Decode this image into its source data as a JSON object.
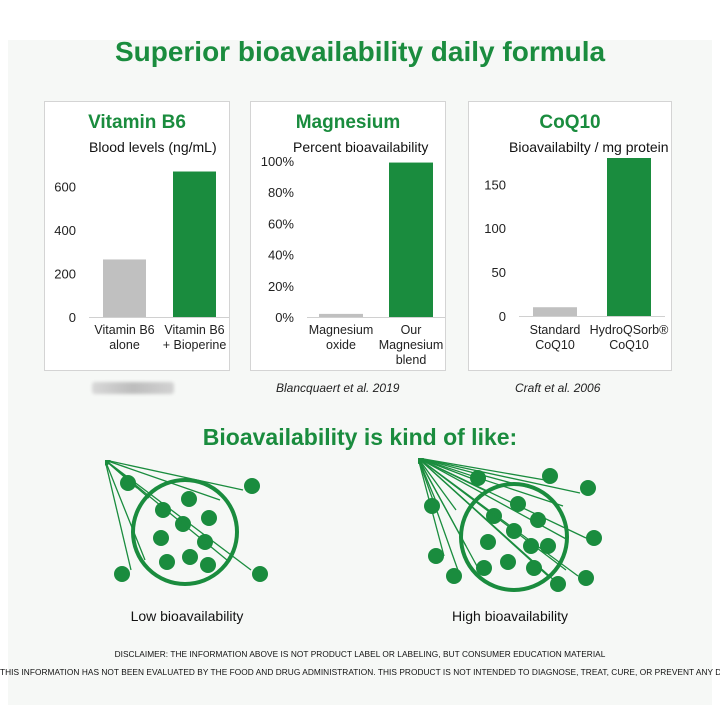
{
  "title": "Superior bioavailability daily formula",
  "subtitle": "Bioavailability is kind of like:",
  "colors": {
    "green": "#1a8c3e",
    "gray": "#c0c0c0"
  },
  "chart_data": [
    {
      "type": "bar",
      "title": "Vitamin B6",
      "ylabel": "Blood levels  (ng/mL)",
      "categories": [
        "Vitamin B6\nalone",
        "Vitamin B6\n+ Bioperine"
      ],
      "values": [
        265,
        670
      ],
      "bar_colors": [
        "#c0c0c0",
        "#1a8c3e"
      ],
      "ylim": [
        0,
        700
      ],
      "yticks": [
        0,
        200,
        400,
        600
      ],
      "ytick_labels": [
        "0",
        "200",
        "400",
        "600"
      ],
      "citation": ""
    },
    {
      "type": "bar",
      "title": "Magnesium",
      "ylabel": "Percent bioavailability",
      "categories": [
        "Magnesium\noxide",
        "Our\nMagnesium\nblend"
      ],
      "values": [
        2,
        99
      ],
      "bar_colors": [
        "#c0c0c0",
        "#1a8c3e"
      ],
      "ylim": [
        0,
        100
      ],
      "yticks": [
        0,
        20,
        40,
        60,
        80,
        100
      ],
      "ytick_labels": [
        "0%",
        "20%",
        "40%",
        "60%",
        "80%",
        "100%"
      ],
      "citation": "Blancquaert et al. 2019"
    },
    {
      "type": "bar",
      "title": "CoQ10",
      "ylabel": "Bioavailabilty / mg protein",
      "categories": [
        "Standard\nCoQ10",
        "HydroQSorb®\nCoQ10"
      ],
      "values": [
        10,
        180
      ],
      "bar_colors": [
        "#c0c0c0",
        "#1a8c3e"
      ],
      "ylim": [
        0,
        180
      ],
      "yticks": [
        0,
        50,
        100,
        150
      ],
      "ytick_labels": [
        "0",
        "50",
        "100",
        "150"
      ],
      "citation": "Craft et al. 2006"
    }
  ],
  "diagrams": {
    "low": "Low bioavailability",
    "high": "High bioavailability"
  },
  "disclaimer": {
    "line1": "DISCLAIMER: THE INFORMATION ABOVE IS NOT PRODUCT LABEL OR LABELING, BUT CONSUMER EDUCATION MATERIAL",
    "line2": "THIS INFORMATION HAS NOT BEEN EVALUATED BY THE FOOD AND DRUG ADMINISTRATION. THIS PRODUCT IS NOT INTENDED TO DIAGNOSE, TREAT, CURE, OR PREVENT ANY DISEASE"
  }
}
